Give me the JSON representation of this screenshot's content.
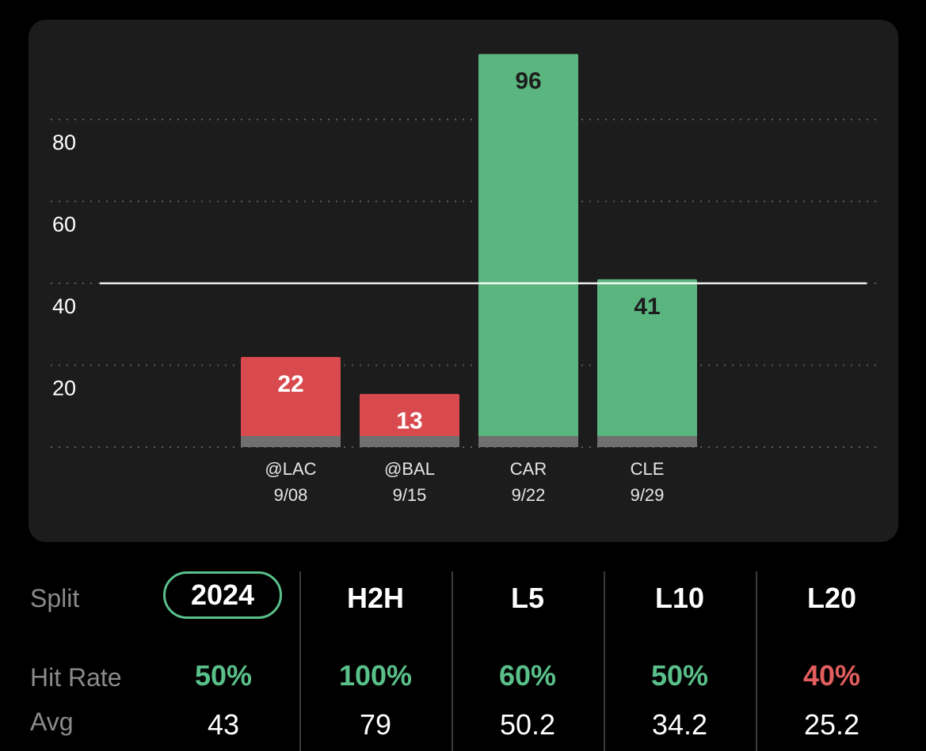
{
  "chart_data": {
    "type": "bar",
    "categories": [
      "@LAC\n9/08",
      "@BAL\n9/15",
      "CAR\n9/22",
      "CLE\n9/29"
    ],
    "category_labels": [
      {
        "opponent": "@LAC",
        "date": "9/08"
      },
      {
        "opponent": "@BAL",
        "date": "9/15"
      },
      {
        "opponent": "CAR",
        "date": "9/22"
      },
      {
        "opponent": "CLE",
        "date": "9/29"
      }
    ],
    "values": [
      22,
      13,
      96,
      41
    ],
    "value_labels": [
      "22",
      "13",
      "96",
      "41"
    ],
    "ylim": [
      0,
      100
    ],
    "yticks": [
      20,
      40,
      60,
      80
    ],
    "ytick_labels": [
      "20",
      "40",
      "60",
      "80"
    ],
    "threshold": 40,
    "grid": true,
    "colors": {
      "over": "#5ab57f",
      "under": "#d94a4f",
      "baseline": "#707070"
    }
  },
  "stats": {
    "split_label": "Split",
    "hit_rate_label": "Hit Rate",
    "avg_label": "Avg",
    "columns": [
      {
        "name": "2024",
        "hit_rate": "50%",
        "avg": "43",
        "hit_status": "green",
        "selected": true
      },
      {
        "name": "H2H",
        "hit_rate": "100%",
        "avg": "79",
        "hit_status": "green",
        "selected": false
      },
      {
        "name": "L5",
        "hit_rate": "60%",
        "avg": "50.2",
        "hit_status": "green",
        "selected": false
      },
      {
        "name": "L10",
        "hit_rate": "50%",
        "avg": "34.2",
        "hit_status": "green",
        "selected": false
      },
      {
        "name": "L20",
        "hit_rate": "40%",
        "avg": "25.2",
        "hit_status": "red",
        "selected": false
      }
    ]
  }
}
